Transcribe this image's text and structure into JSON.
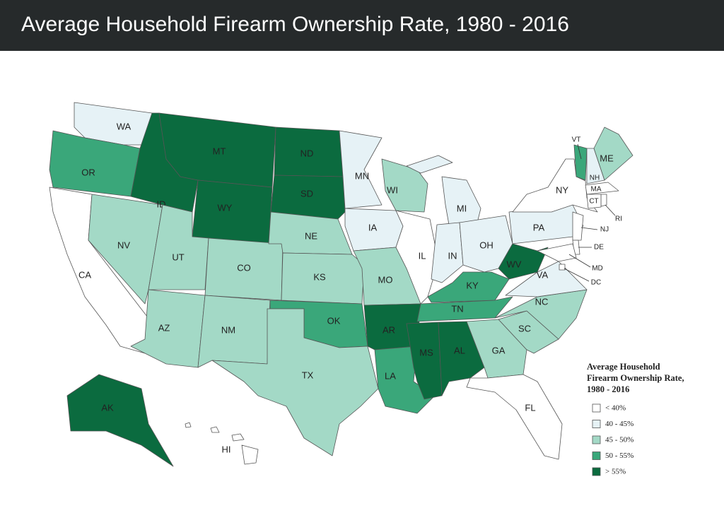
{
  "header": {
    "title": "Average Household Firearm Ownership Rate, 1980 - 2016"
  },
  "legend": {
    "title_lines": [
      "Average Household",
      "Firearm Ownership Rate,",
      "1980 - 2016"
    ],
    "classes": [
      {
        "label": "< 40%",
        "color": "#ffffff"
      },
      {
        "label": "40 - 45%",
        "color": "#e6f2f6"
      },
      {
        "label": "45 - 50%",
        "color": "#a3d9c6"
      },
      {
        "label": "50 - 55%",
        "color": "#3aa77a"
      },
      {
        "label": "> 55%",
        "color": "#0b6b3f"
      }
    ]
  },
  "states": [
    {
      "label": "WA",
      "rate": "40 - 45%"
    },
    {
      "label": "OR",
      "rate": "50 - 55%"
    },
    {
      "label": "CA",
      "rate": "< 40%"
    },
    {
      "label": "NV",
      "rate": "45 - 50%"
    },
    {
      "label": "ID",
      "rate": "> 55%"
    },
    {
      "label": "MT",
      "rate": "> 55%"
    },
    {
      "label": "WY",
      "rate": "> 55%"
    },
    {
      "label": "UT",
      "rate": "45 - 50%"
    },
    {
      "label": "CO",
      "rate": "45 - 50%"
    },
    {
      "label": "AZ",
      "rate": "45 - 50%"
    },
    {
      "label": "NM",
      "rate": "45 - 50%"
    },
    {
      "label": "ND",
      "rate": "> 55%"
    },
    {
      "label": "SD",
      "rate": "> 55%"
    },
    {
      "label": "NE",
      "rate": "45 - 50%"
    },
    {
      "label": "KS",
      "rate": "45 - 50%"
    },
    {
      "label": "OK",
      "rate": "50 - 55%"
    },
    {
      "label": "TX",
      "rate": "45 - 50%"
    },
    {
      "label": "MN",
      "rate": "40 - 45%"
    },
    {
      "label": "IA",
      "rate": "40 - 45%"
    },
    {
      "label": "MO",
      "rate": "45 - 50%"
    },
    {
      "label": "AR",
      "rate": "> 55%"
    },
    {
      "label": "LA",
      "rate": "50 - 55%"
    },
    {
      "label": "WI",
      "rate": "45 - 50%"
    },
    {
      "label": "IL",
      "rate": "< 40%"
    },
    {
      "label": "MI",
      "rate": "40 - 45%"
    },
    {
      "label": "IN",
      "rate": "40 - 45%"
    },
    {
      "label": "OH",
      "rate": "40 - 45%"
    },
    {
      "label": "KY",
      "rate": "50 - 55%"
    },
    {
      "label": "TN",
      "rate": "50 - 55%"
    },
    {
      "label": "MS",
      "rate": "> 55%"
    },
    {
      "label": "AL",
      "rate": "> 55%"
    },
    {
      "label": "GA",
      "rate": "45 - 50%"
    },
    {
      "label": "FL",
      "rate": "< 40%"
    },
    {
      "label": "SC",
      "rate": "45 - 50%"
    },
    {
      "label": "NC",
      "rate": "45 - 50%"
    },
    {
      "label": "VA",
      "rate": "40 - 45%"
    },
    {
      "label": "WV",
      "rate": "> 55%"
    },
    {
      "label": "PA",
      "rate": "40 - 45%"
    },
    {
      "label": "NY",
      "rate": "< 40%"
    },
    {
      "label": "VT",
      "rate": "50 - 55%"
    },
    {
      "label": "NH",
      "rate": "40 - 45%"
    },
    {
      "label": "ME",
      "rate": "45 - 50%"
    },
    {
      "label": "MA",
      "rate": "< 40%"
    },
    {
      "label": "RI",
      "rate": "< 40%"
    },
    {
      "label": "CT",
      "rate": "< 40%"
    },
    {
      "label": "NJ",
      "rate": "< 40%"
    },
    {
      "label": "DE",
      "rate": "< 40%"
    },
    {
      "label": "MD",
      "rate": "< 40%"
    },
    {
      "label": "DC",
      "rate": "< 40%"
    },
    {
      "label": "AK",
      "rate": "> 55%"
    },
    {
      "label": "HI",
      "rate": "< 40%"
    }
  ]
}
